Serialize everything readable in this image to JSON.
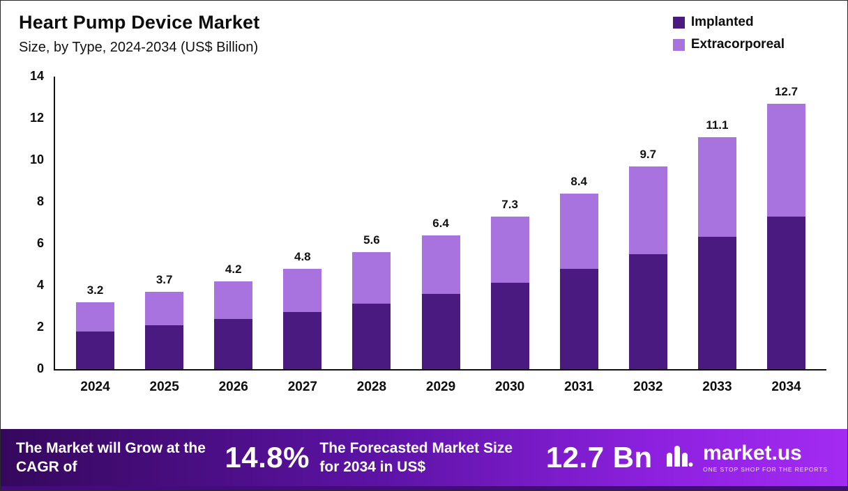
{
  "header": {
    "title": "Heart Pump Device Market",
    "subtitle": "Size, by Type, 2024-2034 (US$ Billion)"
  },
  "legend": [
    {
      "label": "Implanted",
      "color": "#4b1a80"
    },
    {
      "label": "Extracorporeal",
      "color": "#a873df"
    }
  ],
  "chart_data": {
    "type": "bar",
    "stacked": true,
    "title": "Heart Pump Device Market Size, by Type, 2024-2034 (US$ Billion)",
    "categories": [
      "2024",
      "2025",
      "2026",
      "2027",
      "2028",
      "2029",
      "2030",
      "2031",
      "2032",
      "2033",
      "2034"
    ],
    "series": [
      {
        "name": "Implanted",
        "color": "#4b1a80",
        "values": [
          1.8,
          2.1,
          2.4,
          2.75,
          3.15,
          3.6,
          4.15,
          4.8,
          5.5,
          6.35,
          7.3
        ]
      },
      {
        "name": "Extracorporeal",
        "color": "#a873df",
        "values": [
          1.4,
          1.6,
          1.8,
          2.05,
          2.45,
          2.8,
          3.15,
          3.6,
          4.2,
          4.75,
          5.4
        ]
      }
    ],
    "totals": [
      "3.2",
      "3.7",
      "4.2",
      "4.8",
      "5.6",
      "6.4",
      "7.3",
      "8.4",
      "9.7",
      "11.1",
      "12.7"
    ],
    "ylim": [
      0,
      14
    ],
    "yticks": [
      0,
      2,
      4,
      6,
      8,
      10,
      12,
      14
    ],
    "grid": false,
    "legend_position": "top-right"
  },
  "banner": {
    "cagr_label": "The Market will Grow at the CAGR of",
    "cagr_value": "14.8%",
    "forecast_label": "The Forecasted Market Size for 2034 in US$",
    "forecast_value": "12.7 Bn",
    "brand_name": "market.us",
    "brand_tagline": "ONE STOP SHOP FOR THE REPORTS"
  }
}
